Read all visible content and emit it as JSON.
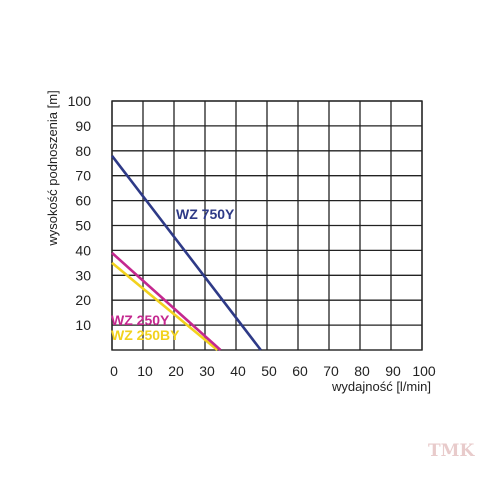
{
  "chart_data": {
    "type": "line",
    "xlabel": "wydajność [l/min]",
    "ylabel": "wysokość podnoszenia [m]",
    "xlim": [
      0,
      100
    ],
    "ylim": [
      0,
      100
    ],
    "x_ticks": [
      "0",
      "10",
      "20",
      "30",
      "40",
      "50",
      "60",
      "70",
      "80",
      "90",
      "100"
    ],
    "y_ticks": [
      "10",
      "20",
      "30",
      "40",
      "50",
      "60",
      "70",
      "80",
      "90",
      "100"
    ],
    "grid": true,
    "series": [
      {
        "name": "WZ 750Y",
        "color": "#2e3a87",
        "points": [
          [
            0,
            78
          ],
          [
            48,
            0
          ]
        ]
      },
      {
        "name": "WZ 250Y",
        "color": "#c4288f",
        "points": [
          [
            0,
            39
          ],
          [
            35,
            0
          ]
        ]
      },
      {
        "name": "WZ 250BY",
        "color": "#f2d21e",
        "points": [
          [
            0,
            35
          ],
          [
            34,
            0
          ]
        ]
      }
    ]
  },
  "watermark": {
    "text": "TMK",
    "color": "#d6a2a2"
  }
}
